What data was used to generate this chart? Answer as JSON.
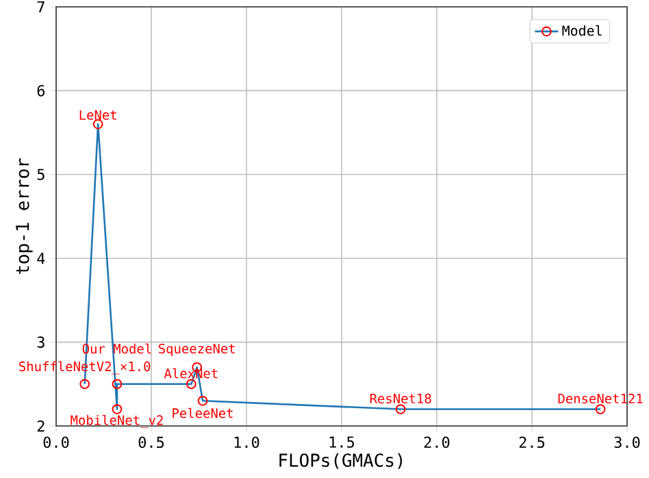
{
  "chart_data": {
    "type": "line",
    "xlabel": "FLOPs(GMACs)",
    "ylabel": "top-1 error",
    "series": [
      {
        "name": "Model",
        "color": "#1f77b4",
        "x": [
          0.15,
          0.22,
          0.32,
          0.32,
          0.71,
          0.74,
          0.77,
          1.81,
          2.86
        ],
        "values": [
          2.5,
          5.6,
          2.2,
          2.5,
          2.5,
          2.7,
          2.3,
          2.2,
          2.2
        ]
      }
    ],
    "annotations": [
      {
        "text": "ShuffleNetV2_×1.0",
        "x": 0.15,
        "y": 2.5
      },
      {
        "text": "LeNet",
        "x": 0.22,
        "y": 5.6
      },
      {
        "text": "MobileNet_v2",
        "x": 0.32,
        "y": 2.2
      },
      {
        "text": "Our Model",
        "x": 0.32,
        "y": 2.5
      },
      {
        "text": "AlexNet",
        "x": 0.71,
        "y": 2.5
      },
      {
        "text": "SqueezeNet",
        "x": 0.74,
        "y": 2.7
      },
      {
        "text": "PeleeNet",
        "x": 0.77,
        "y": 2.3
      },
      {
        "text": "ResNet18",
        "x": 1.81,
        "y": 2.2
      },
      {
        "text": "DenseNet121",
        "x": 2.86,
        "y": 2.2
      }
    ],
    "xlim": [
      0,
      3
    ],
    "ylim": [
      2,
      7
    ],
    "xticks": [
      {
        "value": 0,
        "label": "0.0"
      },
      {
        "value": 0.5,
        "label": "0.5"
      },
      {
        "value": 1,
        "label": "1.0"
      },
      {
        "value": 1.5,
        "label": "1.5"
      },
      {
        "value": 2,
        "label": "2.0"
      },
      {
        "value": 2.5,
        "label": "2.5"
      },
      {
        "value": 3,
        "label": "3.0"
      }
    ],
    "yticks": [
      2,
      3,
      4,
      5,
      6,
      7
    ],
    "grid": true,
    "legend": "top right",
    "marker": "circle",
    "line_style": "solid"
  }
}
